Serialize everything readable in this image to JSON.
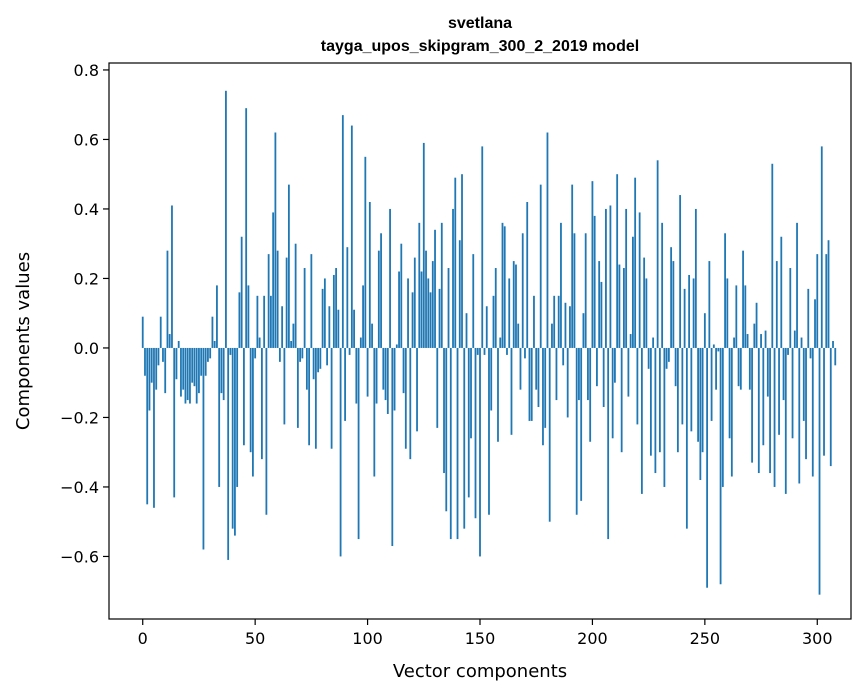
{
  "chart_data": {
    "type": "bar",
    "title": "svetlana",
    "subtitle": "tayga_upos_skipgram_300_2_2019 model",
    "xlabel": "Vector components",
    "ylabel": "Components values",
    "xlim": [
      -15,
      315
    ],
    "ylim": [
      -0.78,
      0.82
    ],
    "xticks": [
      0,
      50,
      100,
      150,
      200,
      250,
      300
    ],
    "yticks": [
      -0.6,
      -0.4,
      -0.2,
      0.0,
      0.2,
      0.4,
      0.6,
      0.8
    ],
    "ytick_labels": [
      "−0.6",
      "−0.4",
      "−0.2",
      "0.0",
      "0.2",
      "0.4",
      "0.6",
      "0.8"
    ],
    "grid": false,
    "bar_color": "#1f77b4",
    "x_start": 0,
    "values": [
      0.09,
      -0.08,
      -0.45,
      -0.18,
      -0.1,
      -0.46,
      -0.12,
      -0.05,
      0.09,
      -0.04,
      -0.13,
      0.28,
      0.04,
      0.41,
      -0.43,
      -0.09,
      0.02,
      -0.14,
      -0.12,
      -0.16,
      -0.15,
      -0.16,
      -0.1,
      -0.11,
      -0.16,
      -0.13,
      -0.08,
      -0.58,
      -0.08,
      -0.04,
      -0.03,
      0.09,
      0.02,
      0.18,
      -0.4,
      -0.13,
      -0.15,
      0.74,
      -0.61,
      -0.02,
      -0.52,
      -0.54,
      -0.4,
      0.16,
      0.32,
      -0.28,
      0.69,
      0.18,
      -0.3,
      -0.37,
      -0.03,
      0.15,
      0.03,
      -0.32,
      0.15,
      -0.48,
      0.27,
      0.15,
      0.39,
      0.62,
      0.28,
      -0.04,
      0.12,
      -0.22,
      0.26,
      0.47,
      0.02,
      0.07,
      0.3,
      -0.23,
      -0.04,
      -0.03,
      0.23,
      -0.12,
      -0.28,
      0.27,
      -0.09,
      -0.29,
      -0.07,
      -0.06,
      0.17,
      0.2,
      -0.05,
      0.12,
      -0.29,
      0.21,
      0.23,
      0.11,
      -0.6,
      0.67,
      -0.21,
      0.29,
      -0.02,
      0.64,
      0.11,
      -0.16,
      -0.55,
      0.03,
      0.18,
      0.55,
      -0.14,
      0.42,
      0.07,
      -0.37,
      -0.16,
      0.28,
      0.33,
      -0.12,
      -0.15,
      -0.19,
      0.4,
      -0.57,
      -0.18,
      0.01,
      0.22,
      0.3,
      -0.13,
      -0.29,
      0.2,
      -0.32,
      0.16,
      0.26,
      -0.24,
      0.36,
      0.22,
      0.59,
      0.28,
      0.2,
      0.16,
      0.25,
      0.34,
      -0.23,
      0.17,
      0.36,
      -0.36,
      -0.47,
      0.23,
      -0.55,
      0.4,
      0.49,
      -0.55,
      0.31,
      0.5,
      -0.52,
      0.1,
      -0.43,
      -0.26,
      0.27,
      -0.49,
      -0.02,
      -0.6,
      0.58,
      -0.02,
      0.12,
      -0.48,
      -0.18,
      0.15,
      0.23,
      -0.27,
      0.03,
      0.36,
      0.35,
      -0.02,
      0.2,
      -0.25,
      0.25,
      0.24,
      0.07,
      -0.12,
      0.33,
      -0.03,
      0.42,
      -0.21,
      -0.21,
      0.15,
      -0.12,
      -0.17,
      0.47,
      -0.28,
      -0.23,
      0.62,
      -0.5,
      0.07,
      0.15,
      -0.15,
      0.15,
      0.36,
      -0.05,
      0.13,
      -0.2,
      0.12,
      0.47,
      0.33,
      -0.48,
      -0.15,
      -0.44,
      0.1,
      0.33,
      -0.15,
      -0.27,
      0.48,
      0.38,
      -0.11,
      0.25,
      0.19,
      -0.17,
      0.4,
      -0.55,
      0.41,
      -0.26,
      -0.1,
      0.5,
      0.24,
      -0.3,
      0.23,
      0.4,
      -0.14,
      0.04,
      0.32,
      0.49,
      -0.22,
      0.39,
      -0.42,
      0.26,
      0.2,
      -0.06,
      -0.31,
      0.03,
      -0.36,
      0.54,
      -0.3,
      0.36,
      -0.4,
      -0.06,
      -0.04,
      0.29,
      0.25,
      -0.11,
      -0.3,
      0.44,
      -0.22,
      0.17,
      -0.52,
      0.21,
      -0.24,
      0.2,
      0.4,
      -0.27,
      -0.38,
      -0.3,
      0.1,
      -0.69,
      0.25,
      -0.21,
      0.01,
      -0.12,
      -0.01,
      -0.68,
      -0.4,
      0.33,
      0.2,
      -0.26,
      -0.37,
      0.03,
      0.18,
      -0.11,
      -0.12,
      0.28,
      0.18,
      0.04,
      -0.12,
      -0.33,
      0.07,
      0.13,
      -0.36,
      0.04,
      -0.28,
      0.05,
      -0.14,
      -0.36,
      0.53,
      -0.4,
      0.25,
      -0.25,
      0.32,
      -0.15,
      -0.42,
      -0.02,
      0.23,
      -0.26,
      0.05,
      0.36,
      -0.39,
      0.03,
      -0.21,
      -0.32,
      0.17,
      -0.03,
      -0.37,
      0.14,
      0.27,
      -0.71,
      0.58,
      -0.31,
      0.27,
      0.31,
      -0.34,
      0.02,
      -0.05
    ]
  }
}
